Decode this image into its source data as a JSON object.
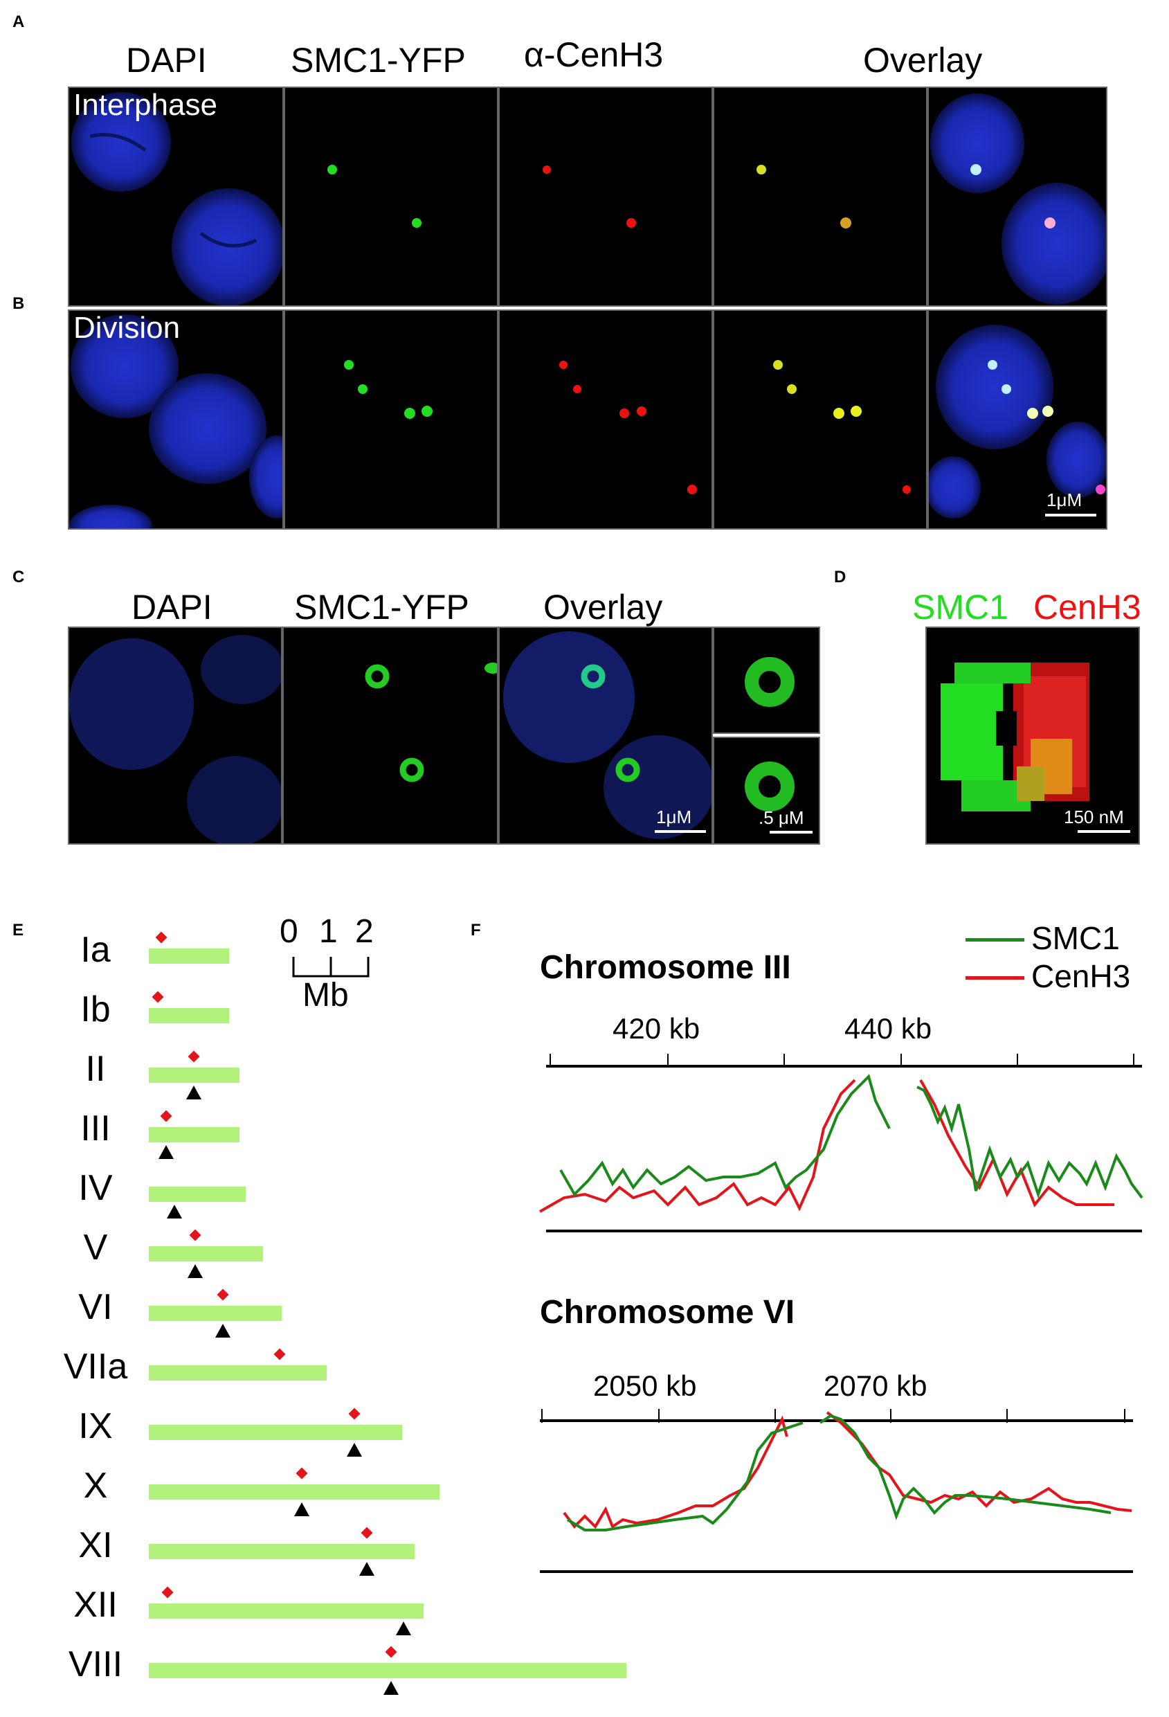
{
  "panel_letters": [
    "A",
    "B",
    "C",
    "D",
    "E",
    "F"
  ],
  "panelA": {
    "headers": [
      "DAPI",
      "SMC1-YFP",
      "α-CenH3",
      "Overlay"
    ],
    "row_label": "Interphase"
  },
  "panelB": {
    "row_label": "Division",
    "scale": "1μM"
  },
  "panelC": {
    "headers": [
      "DAPI",
      "SMC1-YFP",
      "Overlay"
    ],
    "scale1": "1μM",
    "scale2": ".5 μM"
  },
  "panelD": {
    "label_smc1": "SMC1",
    "label_cenh3": "CenH3",
    "scale": "150 nM"
  },
  "panelE": {
    "scale_ticks": [
      "0",
      "1",
      "2"
    ],
    "scale_unit": "Mb",
    "chromosomes": [
      {
        "name": "Ia"
      },
      {
        "name": "Ib"
      },
      {
        "name": "II"
      },
      {
        "name": "III"
      },
      {
        "name": "IV"
      },
      {
        "name": "V"
      },
      {
        "name": "VI"
      },
      {
        "name": "VIIa"
      },
      {
        "name": "IX"
      },
      {
        "name": "X"
      },
      {
        "name": "XI"
      },
      {
        "name": "XII"
      },
      {
        "name": "VIII"
      }
    ]
  },
  "panelF": {
    "legend": [
      "SMC1",
      "CenH3"
    ],
    "colors": {
      "smc1": "#1a8a1a",
      "cenh3": "#e4141b"
    },
    "chrIII": {
      "title": "Chromosome III",
      "ticks": [
        "420 kb",
        "440 kb"
      ]
    },
    "chrVI": {
      "title": "Chromosome VI",
      "ticks": [
        "2050 kb",
        "2070 kb"
      ]
    }
  }
}
